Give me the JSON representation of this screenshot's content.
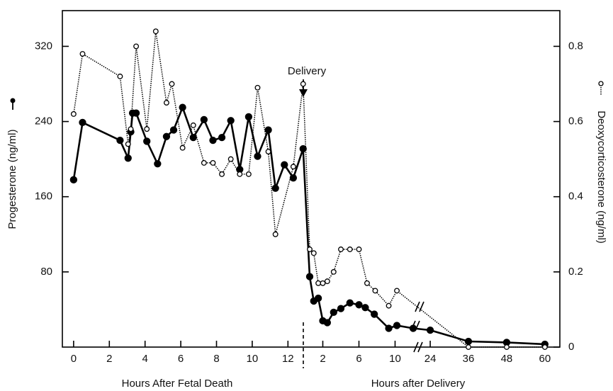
{
  "chart_data": {
    "type": "line",
    "ylabel": "Progesterone (ng/ml)",
    "y2label": "Deoxycorticosterone (ng/ml)",
    "annotation": "Delivery",
    "ylim": [
      0,
      358
    ],
    "yticks": [
      80,
      160,
      240,
      320
    ],
    "y2lim": [
      0,
      0.895
    ],
    "y2ticks": [
      0,
      0.2,
      0.4,
      0.6,
      0.8
    ],
    "x_segments": [
      {
        "label": "Hours After Fetal Death",
        "xlim": [
          -0.63,
          12.86
        ],
        "xticks": [
          0,
          2,
          4,
          6,
          8,
          10,
          12
        ]
      },
      {
        "label": "Hours after Delivery",
        "xlim": [
          0,
          12.55
        ],
        "xticks": [
          2,
          6,
          10
        ]
      },
      {
        "xlim": [
          20.2,
          64.7
        ],
        "xticks": [
          24,
          36,
          48,
          60
        ]
      }
    ],
    "series": [
      {
        "name": "Progesterone",
        "color": "#000000",
        "marker": "filled",
        "x": [
          [
            0,
            0.5,
            2.6,
            3.05,
            3.2,
            3.3,
            3.5,
            4.1,
            4.7,
            5.2,
            5.6,
            6.1,
            6.7,
            7.3,
            7.8,
            8.3,
            8.8,
            9.3,
            9.8,
            10.3,
            10.9,
            11.3,
            11.8,
            12.3,
            12.85
          ],
          [
            0.55,
            1.0,
            1.5,
            2.0,
            2.5,
            3.2,
            4.0,
            5.0,
            6.0,
            6.7,
            7.7,
            9.3,
            10.2,
            12.0
          ],
          [
            24,
            36,
            48,
            60
          ]
        ],
        "values": [
          [
            178,
            239,
            220,
            201,
            229,
            249,
            249,
            219,
            195,
            224,
            231,
            255,
            223,
            242,
            220,
            223,
            241,
            189,
            245,
            203,
            231,
            169,
            194,
            180,
            211
          ],
          [
            75,
            49,
            52,
            28,
            26,
            37,
            41,
            47,
            45,
            42,
            35,
            20,
            23,
            20
          ],
          [
            18,
            6,
            5,
            3
          ]
        ]
      },
      {
        "name": "Deoxycorticosterone",
        "color": "#000000",
        "marker": "open",
        "axis": "y2",
        "x": [
          [
            0,
            0.5,
            2.6,
            3.05,
            3.2,
            3.5,
            4.1,
            4.6,
            5.2,
            5.5,
            6.1,
            6.7,
            7.3,
            7.8,
            8.3,
            8.8,
            9.3,
            9.8,
            10.3,
            10.9,
            11.3,
            12.3,
            12.85
          ],
          [
            0.55,
            1.0,
            1.5,
            2.0,
            2.5,
            3.2,
            4.0,
            5.0,
            6.0,
            6.9,
            7.8,
            9.3,
            10.2
          ],
          [
            36,
            48,
            60
          ]
        ],
        "values": [
          [
            0.62,
            0.78,
            0.72,
            0.54,
            0.58,
            0.8,
            0.58,
            0.84,
            0.65,
            0.7,
            0.53,
            0.59,
            0.49,
            0.49,
            0.46,
            0.5,
            0.46,
            0.46,
            0.69,
            0.52,
            0.3,
            0.48,
            0.7
          ],
          [
            0.26,
            0.25,
            0.17,
            0.17,
            0.175,
            0.2,
            0.26,
            0.26,
            0.26,
            0.17,
            0.15,
            0.11,
            0.15
          ],
          [
            0,
            0,
            0
          ]
        ]
      }
    ]
  }
}
